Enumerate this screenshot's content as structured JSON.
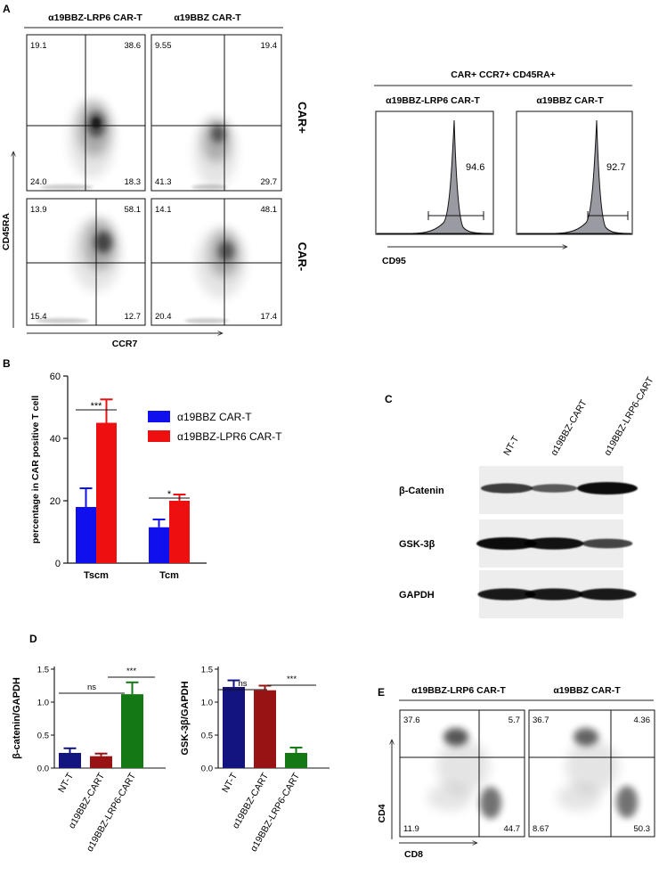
{
  "panel_labels": {
    "a": "A",
    "b": "B",
    "c": "C",
    "d": "D",
    "e": "E"
  },
  "panel_a": {
    "col_headers": [
      "α19BBZ-LRP6 CAR-T",
      "α19BBZ CAR-T"
    ],
    "row_labels": [
      "CAR+",
      "CAR-"
    ],
    "y_axis": "CD45RA",
    "x_axis": "CCR7",
    "quadrants": [
      {
        "ul": "19.1",
        "ur": "38.6",
        "ll": "24.0",
        "lr": "18.3"
      },
      {
        "ul": "9.55",
        "ur": "19.4",
        "ll": "41.3",
        "lr": "29.7"
      },
      {
        "ul": "13.9",
        "ur": "58.1",
        "ll": "15.4",
        "lr": "12.7"
      },
      {
        "ul": "14.1",
        "ur": "48.1",
        "ll": "20.4",
        "lr": "17.4"
      }
    ],
    "hist_title": "CAR+ CCR7+ CD45RA+",
    "hist_headers": [
      "α19BBZ-LRP6 CAR-T",
      "α19BBZ CAR-T"
    ],
    "hist_values": [
      "94.6",
      "92.7"
    ],
    "hist_x_axis": "CD95"
  },
  "panel_b": {
    "chart_data": {
      "type": "bar",
      "ylabel": "percentage in CAR positive T cell",
      "categories": [
        "Tscm",
        "Tcm"
      ],
      "ylim": [
        0,
        60
      ],
      "yticks": [
        0,
        20,
        40,
        60
      ],
      "series": [
        {
          "name": "α19BBZ CAR-T",
          "values": [
            18,
            11.5
          ],
          "errors": [
            6,
            2.5
          ],
          "color": "#1010ee"
        },
        {
          "name": "α19BBZ-LPR6 CAR-T",
          "values": [
            45,
            20
          ],
          "errors": [
            7.5,
            2
          ],
          "color": "#ee1010"
        }
      ],
      "significance": [
        "***",
        "*"
      ]
    }
  },
  "panel_c": {
    "lanes": [
      "NT-T",
      "α19BBZ-CART",
      "α19BBZ-LRP6-CART"
    ],
    "rows": [
      {
        "label": "β-Catenin",
        "intensity": [
          0.65,
          0.45,
          1.0
        ]
      },
      {
        "label": "GSK-3β",
        "intensity": [
          1.0,
          0.95,
          0.6
        ]
      },
      {
        "label": "GAPDH",
        "intensity": [
          0.9,
          0.9,
          0.9
        ]
      }
    ]
  },
  "panel_d": {
    "chart_data": [
      {
        "type": "bar",
        "ylabel": "β-catenin/GAPDH",
        "categories": [
          "NT-T",
          "α19BBZ-CART",
          "α19BBZ-LRP6-CART"
        ],
        "values": [
          0.23,
          0.18,
          1.12
        ],
        "errors": [
          0.07,
          0.04,
          0.18
        ],
        "colors": [
          "#141480",
          "#981414",
          "#147814"
        ],
        "ylim": [
          0,
          1.5
        ],
        "yticks": [
          "0.0",
          "0.5",
          "1.0",
          "1.5"
        ],
        "significance": [
          {
            "label": "ns",
            "from": 0,
            "to": 1
          },
          {
            "label": "***",
            "from": 1,
            "to": 2
          }
        ]
      },
      {
        "type": "bar",
        "ylabel": "GSK-3β/GAPDH",
        "categories": [
          "NT-T",
          "α19BBZ-CART",
          "α19BBZ-LRP6-CART"
        ],
        "values": [
          1.23,
          1.18,
          0.23
        ],
        "errors": [
          0.1,
          0.07,
          0.08
        ],
        "colors": [
          "#141480",
          "#981414",
          "#147814"
        ],
        "ylim": [
          0,
          1.5
        ],
        "yticks": [
          "0.0",
          "0.5",
          "1.0",
          "1.5"
        ],
        "significance": [
          {
            "label": "ns",
            "from": 0,
            "to": 1
          },
          {
            "label": "***",
            "from": 1,
            "to": 2
          }
        ]
      }
    ]
  },
  "panel_e": {
    "col_headers": [
      "α19BBZ-LRP6 CAR-T",
      "α19BBZ CAR-T"
    ],
    "y_axis": "CD4",
    "x_axis": "CD8",
    "quadrants": [
      {
        "ul": "37.6",
        "ur": "5.7",
        "ll": "11.9",
        "lr": "44.7"
      },
      {
        "ul": "36.7",
        "ur": "4.36",
        "ll": "8.67",
        "lr": "50.3"
      }
    ]
  }
}
